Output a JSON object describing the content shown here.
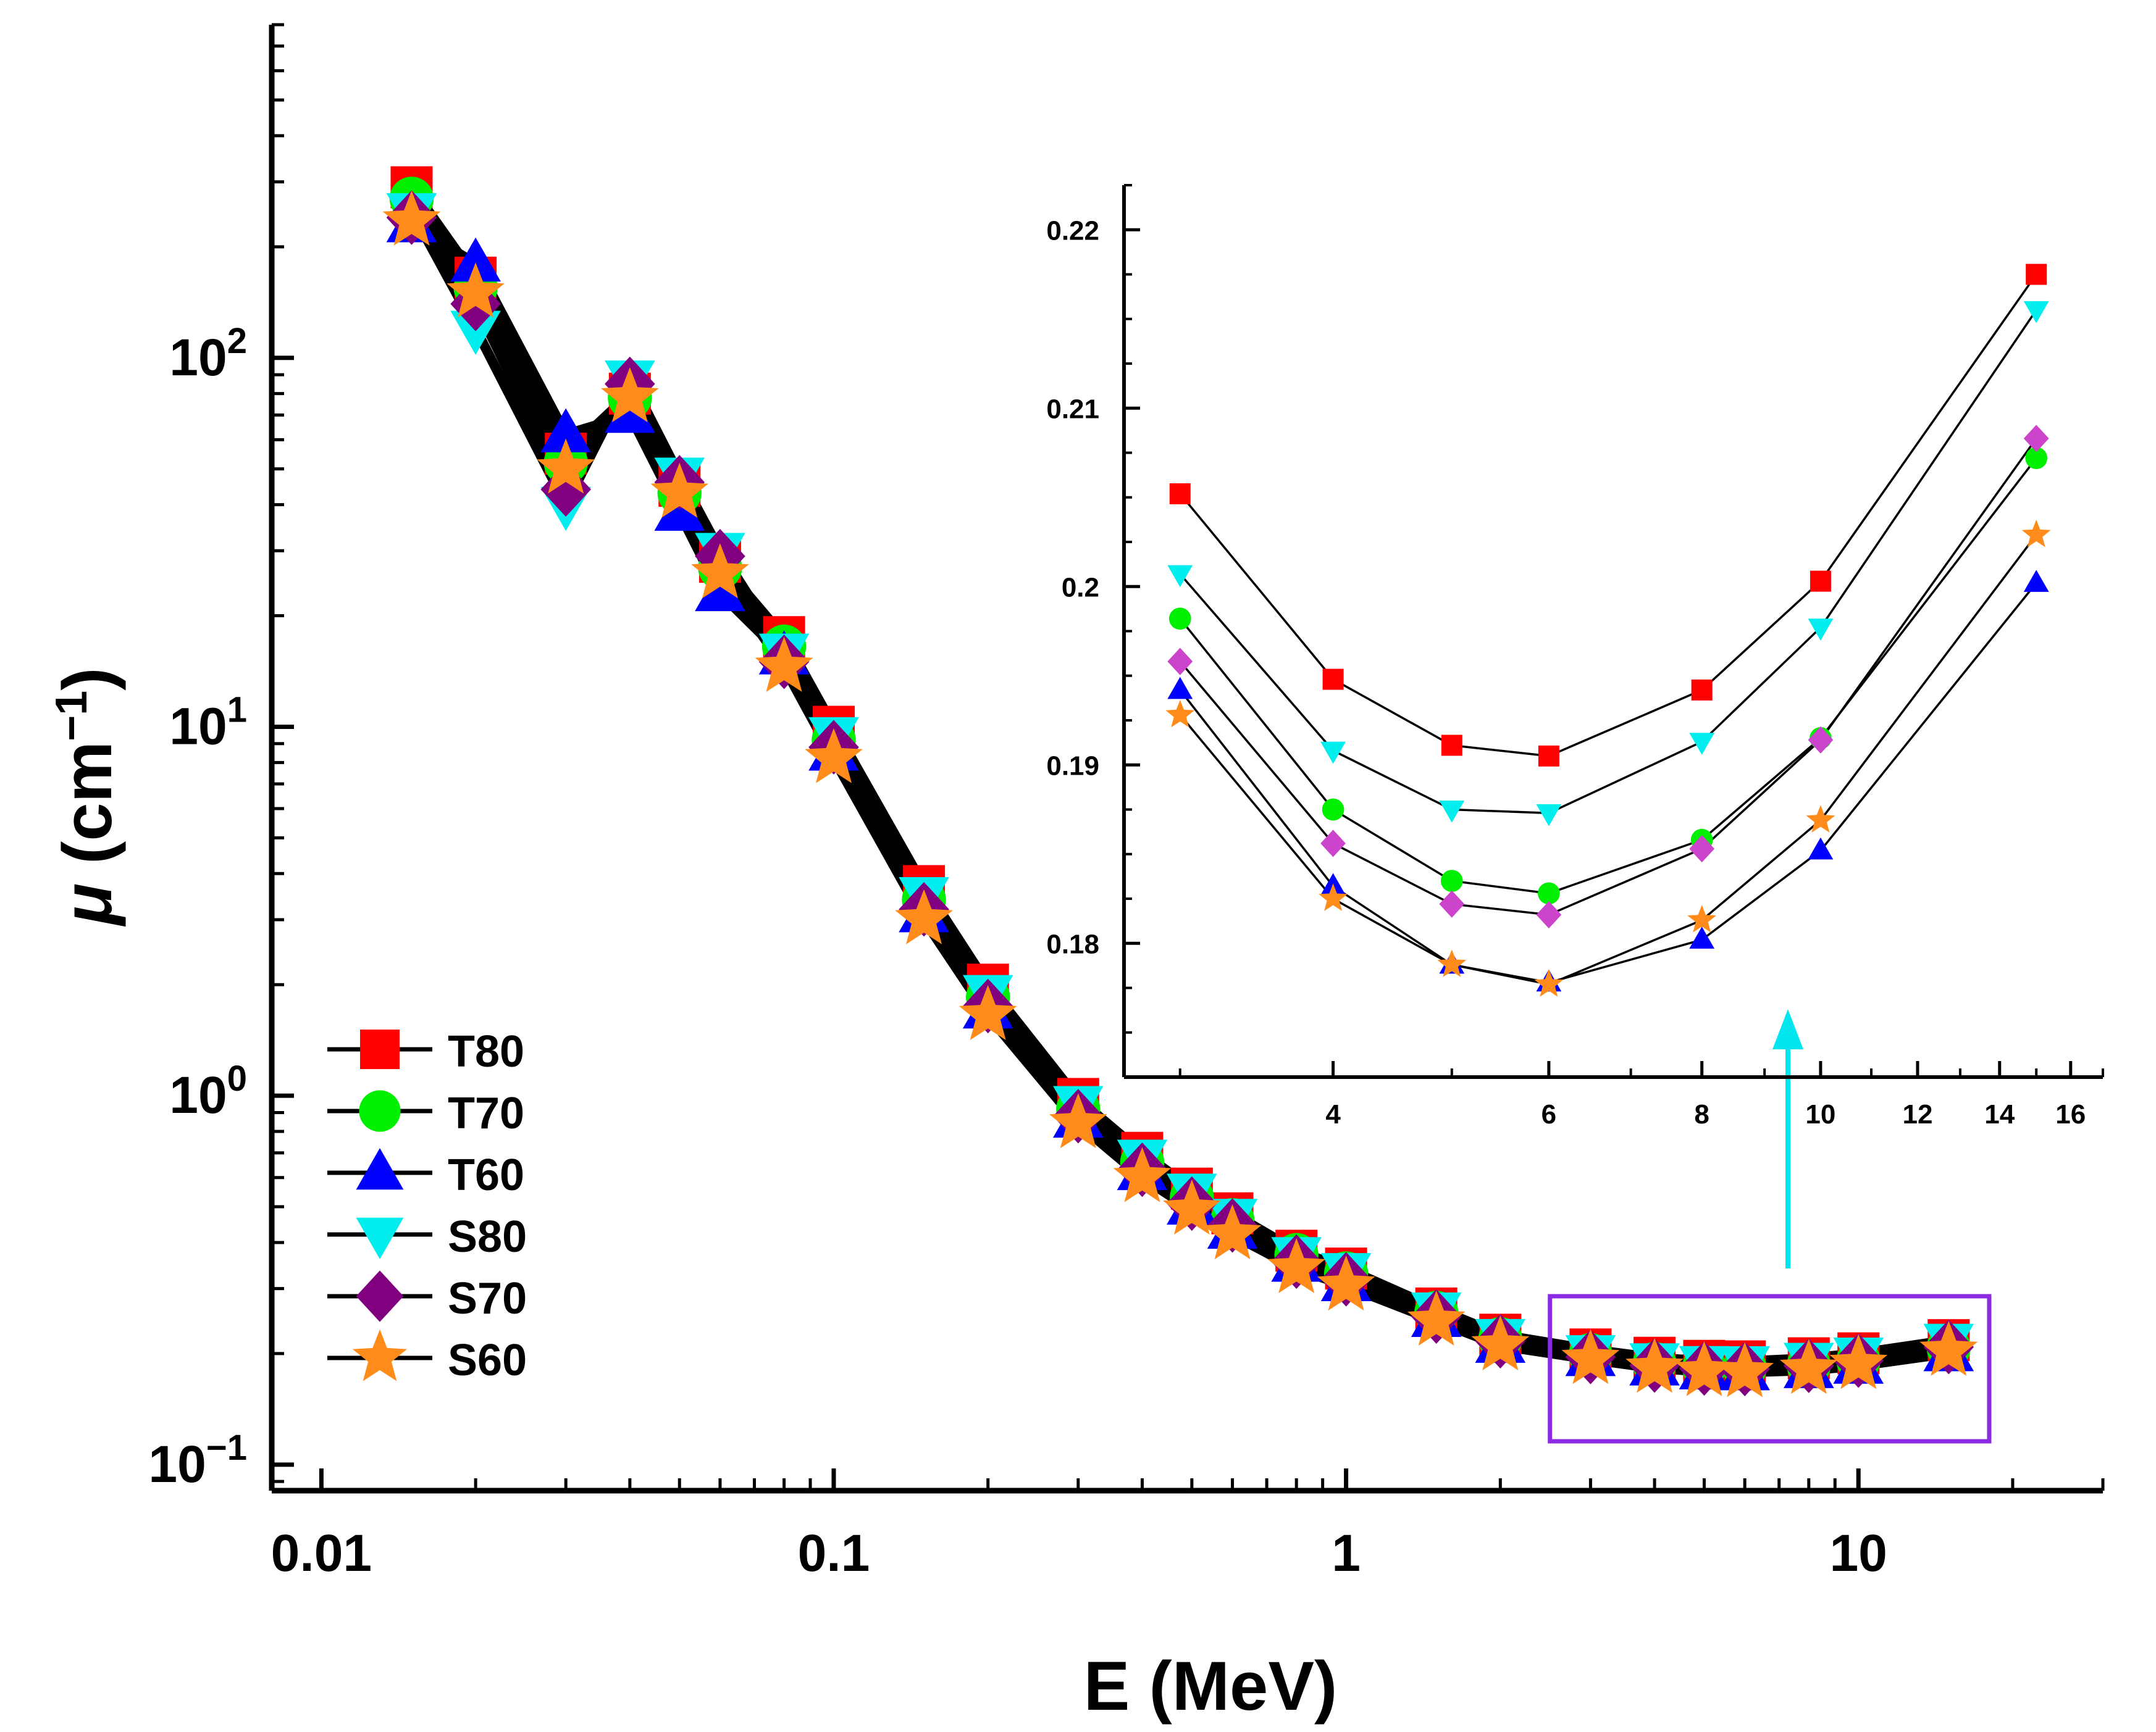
{
  "chart_data": {
    "type": "line",
    "main": {
      "xlabel": "E (MeV)",
      "ylabel": "μ (cm⁻¹)",
      "xscale": "log",
      "yscale": "log",
      "xlim": [
        0.008,
        30
      ],
      "ylim": [
        0.085,
        800
      ],
      "x_ticks": [
        {
          "value": 0.01,
          "label": "0.01"
        },
        {
          "value": 0.1,
          "label": "0.1"
        },
        {
          "value": 1,
          "label": "1"
        },
        {
          "value": 10,
          "label": "10"
        }
      ],
      "y_ticks": [
        {
          "value": 0.1,
          "base": "10",
          "exp": "−1"
        },
        {
          "value": 1,
          "base": "10",
          "exp": "0"
        },
        {
          "value": 10,
          "base": "10",
          "exp": "1"
        },
        {
          "value": 100,
          "base": "10",
          "exp": "2"
        }
      ],
      "x": [
        0.015,
        0.02,
        0.03,
        0.04,
        0.05,
        0.06,
        0.08,
        0.1,
        0.15,
        0.2,
        0.3,
        0.4,
        0.5,
        0.6,
        0.8,
        1.0,
        1.5,
        2.0,
        3.0,
        4.0,
        5.0,
        6.0,
        8.0,
        10.0,
        15.0
      ],
      "series": [
        {
          "name": "T80",
          "marker": "square",
          "color": "#ff0000",
          "values": [
            290,
            165,
            55,
            80,
            45,
            28,
            17.5,
            10,
            3.7,
            2.0,
            0.98,
            0.7,
            0.56,
            0.48,
            0.38,
            0.34,
            0.265,
            0.225,
            0.2052,
            0.1948,
            0.1911,
            0.1905,
            0.1942,
            0.2003,
            0.2175
          ]
        },
        {
          "name": "T70",
          "marker": "circle",
          "color": "#00ee00",
          "values": [
            270,
            155,
            52,
            78,
            43,
            27,
            16.5,
            9.2,
            3.4,
            1.85,
            0.92,
            0.66,
            0.53,
            0.46,
            0.37,
            0.33,
            0.258,
            0.219,
            0.1982,
            0.1875,
            0.1835,
            0.1828,
            0.1858,
            0.1915,
            0.2072
          ]
        },
        {
          "name": "T60",
          "marker": "triangle-up",
          "color": "#0000ff",
          "values": [
            230,
            180,
            62,
            70,
            38,
            23,
            15.5,
            8.5,
            3.1,
            1.7,
            0.86,
            0.62,
            0.5,
            0.43,
            0.35,
            0.31,
            0.248,
            0.211,
            0.1942,
            0.1832,
            0.1788,
            0.1778,
            0.1802,
            0.1852,
            0.2002
          ]
        },
        {
          "name": "S80",
          "marker": "triangle-down",
          "color": "#00eeee",
          "values": [
            250,
            120,
            40,
            88,
            48,
            30,
            16,
            9.5,
            3.5,
            1.9,
            0.95,
            0.68,
            0.55,
            0.47,
            0.37,
            0.335,
            0.262,
            0.222,
            0.2007,
            0.1908,
            0.1875,
            0.1873,
            0.1913,
            0.1977,
            0.2155
          ]
        },
        {
          "name": "S70",
          "marker": "diamond",
          "color": "#800080",
          "values": [
            240,
            140,
            44,
            85,
            46,
            29,
            15,
            8.8,
            3.2,
            1.75,
            0.88,
            0.63,
            0.51,
            0.445,
            0.355,
            0.318,
            0.252,
            0.216,
            0.1958,
            0.1856,
            0.1822,
            0.1816,
            0.1853,
            0.1914,
            0.2083
          ]
        },
        {
          "name": "S60",
          "marker": "star",
          "color": "#ff8c1a",
          "values": [
            235,
            150,
            50,
            78,
            43,
            26,
            14.5,
            8.2,
            3.0,
            1.65,
            0.84,
            0.6,
            0.49,
            0.42,
            0.34,
            0.305,
            0.245,
            0.21,
            0.1928,
            0.1825,
            0.1788,
            0.1777,
            0.1813,
            0.1869,
            0.2029
          ]
        }
      ]
    },
    "inset": {
      "xscale": "log",
      "yscale": "linear",
      "xlim": [
        2.7,
        17
      ],
      "ylim": [
        0.1725,
        0.2225
      ],
      "x_ticks": [
        {
          "value": 4,
          "label": "4"
        },
        {
          "value": 6,
          "label": "6"
        },
        {
          "value": 8,
          "label": "8"
        },
        {
          "value": 10,
          "label": "10"
        },
        {
          "value": 12,
          "label": "12"
        },
        {
          "value": 14,
          "label": "14"
        },
        {
          "value": 16,
          "label": "16"
        }
      ],
      "y_ticks": [
        {
          "value": 0.18,
          "label": "0.18"
        },
        {
          "value": 0.19,
          "label": "0.19"
        },
        {
          "value": 0.2,
          "label": "0.2"
        },
        {
          "value": 0.21,
          "label": "0.21"
        },
        {
          "value": 0.22,
          "label": "0.22"
        }
      ],
      "x": [
        3,
        4,
        5,
        6,
        8,
        10,
        15
      ],
      "series_colors": {
        "T80": "#ff0000",
        "T70": "#00ee00",
        "T60": "#0000ff",
        "S80": "#00eeee",
        "S70": "#cc44cc",
        "S60": "#ff8c1a"
      }
    },
    "highlight_box": {
      "x_range": [
        2.5,
        18
      ],
      "color": "#8a2be2"
    },
    "arrow_color": "#00e5ee",
    "legend": {
      "position": "lower-left",
      "entries": [
        "T80",
        "T70",
        "T60",
        "S80",
        "S70",
        "S60"
      ]
    }
  }
}
